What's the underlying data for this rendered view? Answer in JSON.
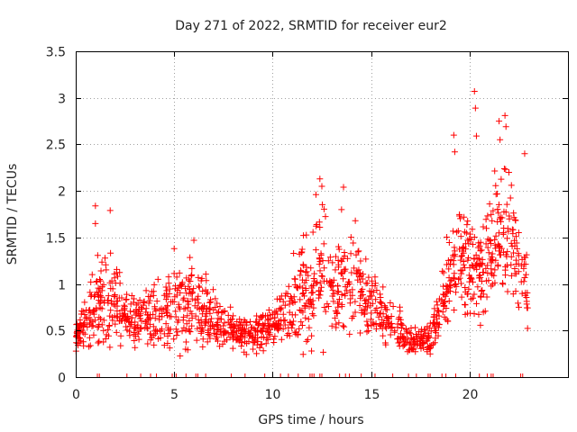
{
  "chart_data": {
    "type": "scatter",
    "title": "Day 271 of 2022, SRMTID for receiver eur2",
    "xlabel": "GPS time / hours",
    "ylabel": "SRMTID / TECUs",
    "xlim": [
      0,
      25
    ],
    "ylim": [
      0,
      3.5
    ],
    "xticks": [
      0,
      5,
      10,
      15,
      20
    ],
    "xtick_labels": [
      "0",
      "5",
      "10",
      "15",
      "20"
    ],
    "yticks": [
      0,
      0.5,
      1,
      1.5,
      2,
      2.5,
      3,
      3.5
    ],
    "ytick_labels": [
      "0",
      "0.5",
      "1",
      "1.5",
      "2",
      "2.5",
      "3",
      "3.5"
    ],
    "grid": true,
    "legend": "none",
    "marker": "+",
    "color": "#ff0000",
    "series": [
      {
        "name": "SRMTID",
        "envelope": [
          {
            "t": 0.0,
            "base": 0.45,
            "spread": 0.15
          },
          {
            "t": 0.5,
            "base": 0.55,
            "spread": 0.35
          },
          {
            "t": 1.0,
            "base": 0.75,
            "spread": 0.55
          },
          {
            "t": 1.5,
            "base": 0.85,
            "spread": 0.6
          },
          {
            "t": 2.0,
            "base": 0.8,
            "spread": 0.55
          },
          {
            "t": 2.5,
            "base": 0.65,
            "spread": 0.3
          },
          {
            "t": 3.0,
            "base": 0.6,
            "spread": 0.3
          },
          {
            "t": 4.0,
            "base": 0.65,
            "spread": 0.4
          },
          {
            "t": 5.0,
            "base": 0.7,
            "spread": 0.5
          },
          {
            "t": 6.0,
            "base": 0.75,
            "spread": 0.5
          },
          {
            "t": 7.0,
            "base": 0.6,
            "spread": 0.35
          },
          {
            "t": 8.0,
            "base": 0.5,
            "spread": 0.25
          },
          {
            "t": 9.0,
            "base": 0.45,
            "spread": 0.2
          },
          {
            "t": 10.0,
            "base": 0.55,
            "spread": 0.3
          },
          {
            "t": 11.0,
            "base": 0.7,
            "spread": 0.5
          },
          {
            "t": 11.5,
            "base": 0.9,
            "spread": 0.7
          },
          {
            "t": 12.0,
            "base": 1.1,
            "spread": 0.8
          },
          {
            "t": 12.5,
            "base": 1.2,
            "spread": 0.9
          },
          {
            "t": 13.0,
            "base": 0.9,
            "spread": 0.5
          },
          {
            "t": 14.0,
            "base": 1.05,
            "spread": 0.6
          },
          {
            "t": 15.0,
            "base": 0.8,
            "spread": 0.45
          },
          {
            "t": 16.0,
            "base": 0.6,
            "spread": 0.3
          },
          {
            "t": 17.0,
            "base": 0.4,
            "spread": 0.15
          },
          {
            "t": 18.0,
            "base": 0.4,
            "spread": 0.15
          },
          {
            "t": 18.5,
            "base": 0.75,
            "spread": 0.4
          },
          {
            "t": 19.0,
            "base": 1.1,
            "spread": 0.6
          },
          {
            "t": 19.5,
            "base": 1.3,
            "spread": 0.6
          },
          {
            "t": 20.0,
            "base": 1.2,
            "spread": 0.7
          },
          {
            "t": 20.5,
            "base": 1.0,
            "spread": 0.6
          },
          {
            "t": 21.0,
            "base": 1.2,
            "spread": 0.7
          },
          {
            "t": 21.5,
            "base": 1.6,
            "spread": 0.8
          },
          {
            "t": 22.0,
            "base": 1.6,
            "spread": 0.8
          },
          {
            "t": 22.5,
            "base": 1.2,
            "spread": 0.6
          },
          {
            "t": 23.0,
            "base": 0.8,
            "spread": 0.4
          }
        ],
        "spikes": [
          {
            "x": 20.25,
            "y": 3.07
          },
          {
            "x": 20.3,
            "y": 2.89
          },
          {
            "x": 20.35,
            "y": 2.59
          },
          {
            "x": 19.2,
            "y": 2.6
          },
          {
            "x": 19.25,
            "y": 2.42
          },
          {
            "x": 21.8,
            "y": 2.81
          },
          {
            "x": 21.85,
            "y": 2.69
          },
          {
            "x": 21.5,
            "y": 2.75
          },
          {
            "x": 21.55,
            "y": 2.55
          },
          {
            "x": 12.4,
            "y": 2.13
          },
          {
            "x": 12.5,
            "y": 2.05
          },
          {
            "x": 12.2,
            "y": 1.96
          },
          {
            "x": 13.6,
            "y": 2.04
          },
          {
            "x": 13.5,
            "y": 1.8
          },
          {
            "x": 14.2,
            "y": 1.68
          },
          {
            "x": 1.0,
            "y": 1.84
          },
          {
            "x": 1.75,
            "y": 1.79
          },
          {
            "x": 1.0,
            "y": 1.65
          },
          {
            "x": 6.0,
            "y": 1.47
          },
          {
            "x": 5.0,
            "y": 1.38
          },
          {
            "x": 22.8,
            "y": 2.4
          },
          {
            "x": 22.0,
            "y": 2.2
          }
        ],
        "zero_markers_x": [
          1.1,
          1.2,
          2.6,
          3.3,
          3.8,
          4.1,
          4.9,
          5.1,
          5.6,
          6.1,
          6.2,
          6.6,
          7.9,
          8.6,
          9.6,
          10.4,
          10.8,
          11.3,
          11.9,
          12.0,
          12.1,
          12.4,
          12.5,
          13.4,
          13.7,
          13.9,
          14.5,
          15.2,
          16.1,
          16.9,
          17.3,
          17.9,
          18.0,
          18.6,
          18.8,
          19.3,
          20.5,
          20.9,
          21.1,
          21.2,
          22.6,
          22.7
        ]
      }
    ]
  }
}
